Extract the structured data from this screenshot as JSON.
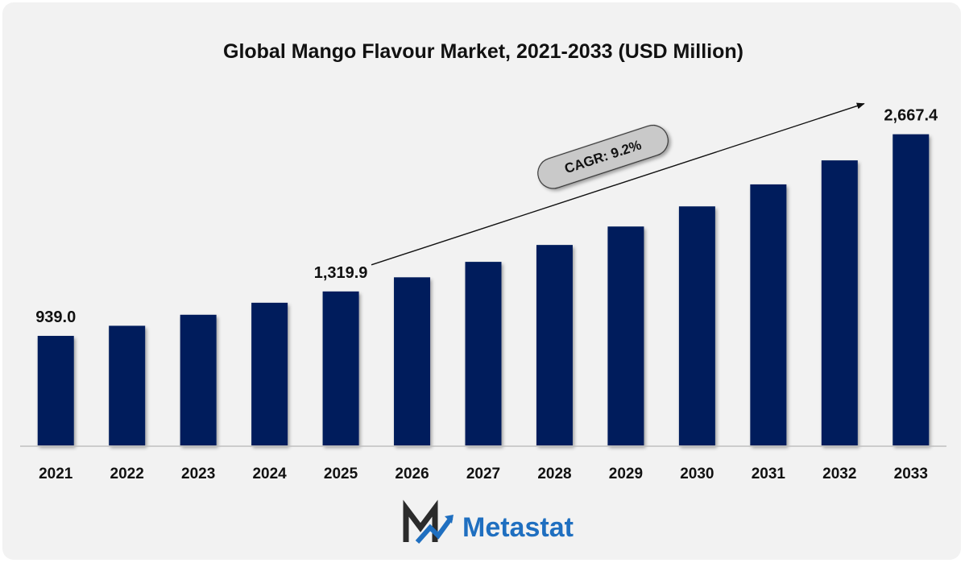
{
  "chart_data": {
    "type": "bar",
    "title": "Global Mango Flavour Market, 2021-2033 (USD Million)",
    "categories": [
      "2021",
      "2022",
      "2023",
      "2024",
      "2025",
      "2026",
      "2027",
      "2028",
      "2029",
      "2030",
      "2031",
      "2032",
      "2033"
    ],
    "values": [
      939.0,
      1025.5,
      1120.0,
      1223.0,
      1319.9,
      1441.0,
      1573.6,
      1718.4,
      1876.5,
      2049.1,
      2237.6,
      2443.5,
      2667.4
    ],
    "data_labels": [
      {
        "index": 0,
        "text": "939.0"
      },
      {
        "index": 4,
        "text": "1,319.9"
      },
      {
        "index": 12,
        "text": "2,667.4"
      }
    ],
    "annotation": {
      "text": "CAGR: 9.2%",
      "from_index": 4,
      "to_index": 12
    },
    "ylim": [
      0,
      2900
    ],
    "grid": false,
    "legend": "none",
    "bar_color": "#001f5b"
  },
  "brand": {
    "name": "Metastat",
    "text_color": "#1f6fc0",
    "mark_colors": [
      "#2b2b2b",
      "#1f6fc0"
    ]
  }
}
